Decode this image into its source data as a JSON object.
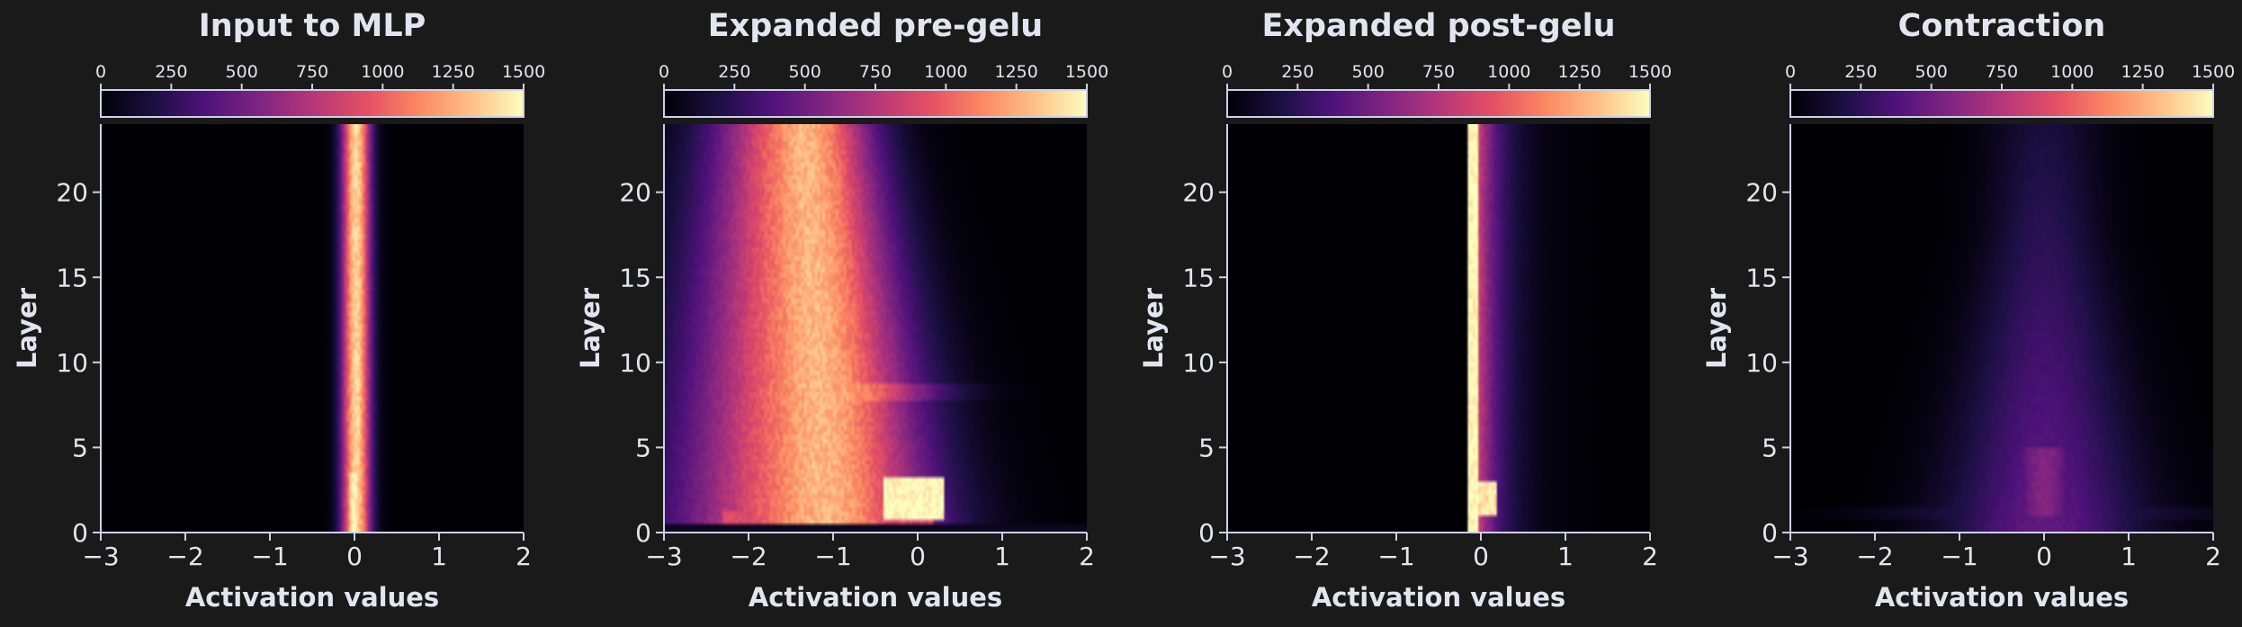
{
  "figure": {
    "background": "#1a1a1a",
    "text_color": "#e4e4f0",
    "axis_color": "#cfd0e8"
  },
  "chart_data": [
    {
      "type": "heatmap",
      "title": "Input to MLP",
      "xlabel": "Activation values",
      "ylabel": "Layer",
      "xlim": [
        -3,
        2
      ],
      "ylim": [
        0,
        24
      ],
      "xticks": [
        "−3",
        "−2",
        "−1",
        "0",
        "1",
        "2"
      ],
      "yticks": [
        "0",
        "5",
        "10",
        "15",
        "20"
      ],
      "colorbar": {
        "range": [
          0,
          1500
        ],
        "ticks": [
          "0",
          "250",
          "500",
          "750",
          "1000",
          "1250",
          "1500"
        ],
        "colormap": "magma"
      },
      "profile": "input"
    },
    {
      "type": "heatmap",
      "title": "Expanded pre-gelu",
      "xlabel": "Activation values",
      "ylabel": "Layer",
      "xlim": [
        -3,
        2
      ],
      "ylim": [
        0,
        24
      ],
      "xticks": [
        "−3",
        "−2",
        "−1",
        "0",
        "1",
        "2"
      ],
      "yticks": [
        "0",
        "5",
        "10",
        "15",
        "20"
      ],
      "colorbar": {
        "range": [
          0,
          1500
        ],
        "ticks": [
          "0",
          "250",
          "500",
          "750",
          "1000",
          "1250",
          "1500"
        ],
        "colormap": "magma"
      },
      "profile": "pregelu"
    },
    {
      "type": "heatmap",
      "title": "Expanded post-gelu",
      "xlabel": "Activation values",
      "ylabel": "Layer",
      "xlim": [
        -3,
        2
      ],
      "ylim": [
        0,
        24
      ],
      "xticks": [
        "−3",
        "−2",
        "−1",
        "0",
        "1",
        "2"
      ],
      "yticks": [
        "0",
        "5",
        "10",
        "15",
        "20"
      ],
      "colorbar": {
        "range": [
          0,
          1500
        ],
        "ticks": [
          "0",
          "250",
          "500",
          "750",
          "1000",
          "1250",
          "1500"
        ],
        "colormap": "magma"
      },
      "profile": "postgelu"
    },
    {
      "type": "heatmap",
      "title": "Contraction",
      "xlabel": "Activation values",
      "ylabel": "Layer",
      "xlim": [
        -3,
        2
      ],
      "ylim": [
        0,
        24
      ],
      "xticks": [
        "−3",
        "−2",
        "−1",
        "0",
        "1",
        "2"
      ],
      "yticks": [
        "0",
        "5",
        "10",
        "15",
        "20"
      ],
      "colorbar": {
        "range": [
          0,
          1500
        ],
        "ticks": [
          "0",
          "250",
          "500",
          "750",
          "1000",
          "1250",
          "1500"
        ],
        "colormap": "magma"
      },
      "profile": "contraction"
    }
  ]
}
